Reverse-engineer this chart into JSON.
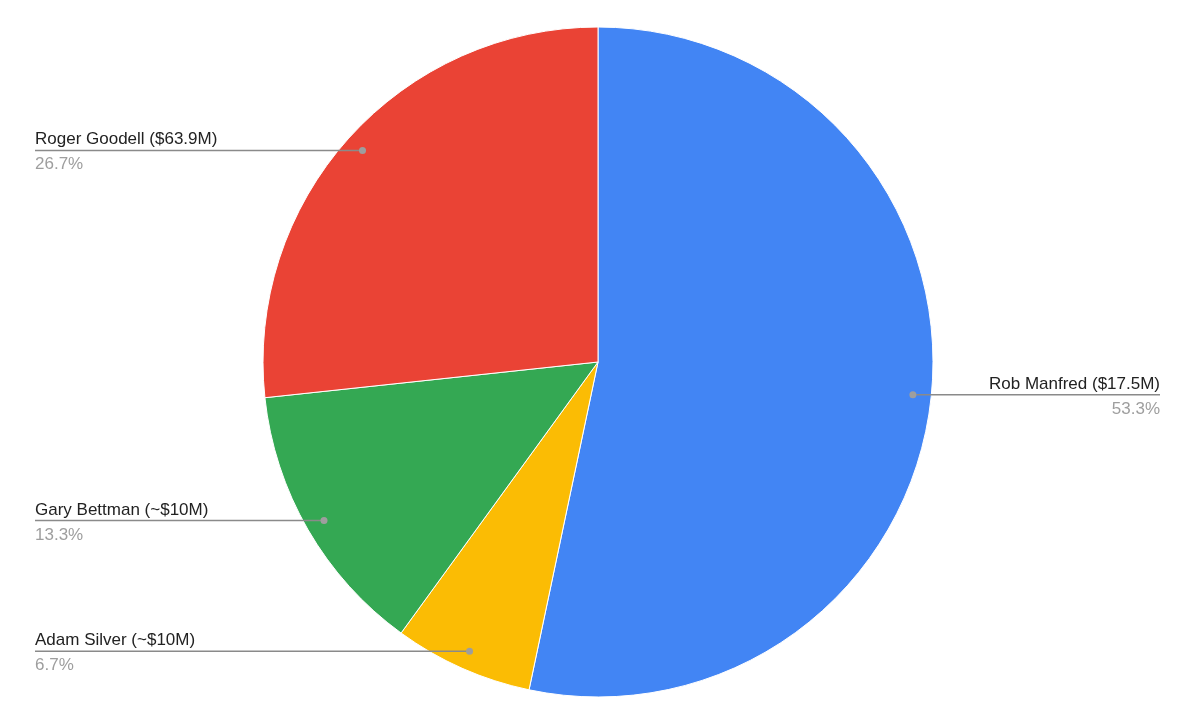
{
  "chart_data": {
    "type": "pie",
    "categories": [
      "Rob Manfred ($17.5M)",
      "Adam Silver (~$10M)",
      "Gary Bettman (~$10M)",
      "Roger Goodell ($63.9M)"
    ],
    "values": [
      53.3,
      6.7,
      13.3,
      26.7
    ],
    "colors": [
      "#4285f4",
      "#fbbc04",
      "#34a853",
      "#ea4335"
    ],
    "value_labels": [
      "53.3%",
      "6.7%",
      "13.3%",
      "26.7%"
    ]
  }
}
